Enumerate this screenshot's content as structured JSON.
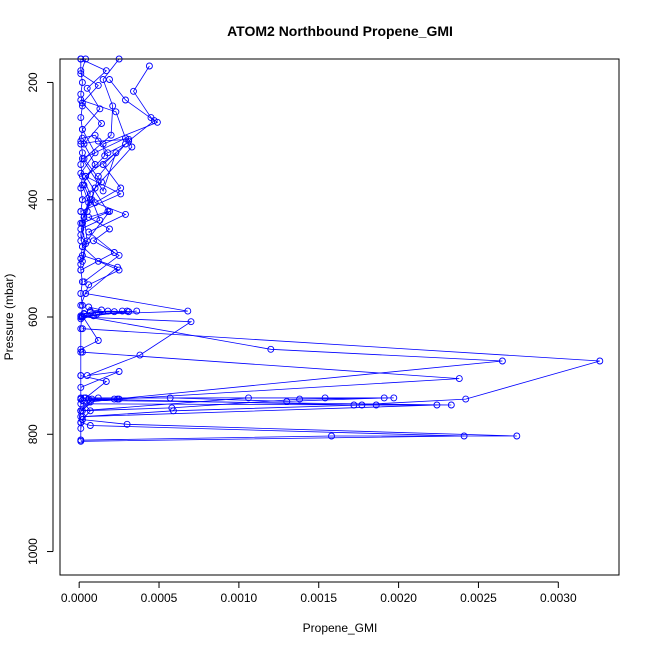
{
  "chart_data": {
    "type": "line",
    "title": "ATOM2 Northbound Propene_GMI",
    "xlabel": "Propene_GMI",
    "ylabel": "Pressure (mbar)",
    "xlim": [
      -0.00012,
      0.00338
    ],
    "ylim": [
      1040,
      160
    ],
    "y_reversed": true,
    "grid": false,
    "xticks": [
      "0.0000",
      "0.0005",
      "0.0010",
      "0.0015",
      "0.0020",
      "0.0025",
      "0.0030"
    ],
    "xtick_values": [
      0.0,
      0.0005,
      0.001,
      0.0015,
      0.002,
      0.0025,
      0.003
    ],
    "yticks": [
      "200",
      "400",
      "600",
      "800",
      "1000"
    ],
    "ytick_values": [
      200,
      400,
      600,
      800,
      1000
    ],
    "color": "#0000ff",
    "series": [
      {
        "x": [
          4e-05,
          1e-05,
          0.00012,
          2e-05,
          0.00014,
          3e-05,
          0.0001,
          2e-05,
          6e-05,
          1e-05,
          4e-05,
          1e-05
        ],
        "y": [
          160,
          185,
          205,
          235,
          270,
          305,
          340,
          375,
          405,
          440,
          475,
          510
        ]
      },
      {
        "x": [
          1e-05,
          0.00017,
          5e-05,
          0.00013,
          2e-05,
          0.0001,
          1e-05,
          7e-05,
          3e-05,
          5e-05,
          2e-05
        ],
        "y": [
          160,
          180,
          210,
          245,
          280,
          320,
          355,
          390,
          430,
          470,
          505
        ]
      },
      {
        "x": [
          0.00025,
          0.00015,
          0.00021,
          0.0002,
          3e-05,
          0.00014,
          2e-05
        ],
        "y": [
          160,
          195,
          240,
          290,
          330,
          370,
          400
        ]
      },
      {
        "x": [
          0.00044,
          0.00034,
          0.00045,
          0.00049,
          0.00015,
          0.00016,
          4e-05,
          0.00026,
          1e-05
        ],
        "y": [
          172,
          215,
          260,
          268,
          305,
          325,
          360,
          390,
          420
        ]
      },
      {
        "x": [
          0.00019,
          0.00029,
          0.00047,
          0.00031,
          0.00015,
          0.00026,
          0.0001,
          0.00029,
          6e-05,
          0.00022,
          1e-05
        ],
        "y": [
          195,
          230,
          265,
          300,
          340,
          380,
          405,
          425,
          455,
          490,
          520
        ]
      },
      {
        "x": [
          1e-05,
          0.00023,
          0.00029,
          2e-05,
          0.00015,
          0.00023,
          4e-05,
          0.00018,
          6e-05,
          0.00019,
          9e-05,
          0.00025,
          3e-05
        ],
        "y": [
          230,
          250,
          295,
          330,
          385,
          320,
          360,
          420,
          430,
          450,
          470,
          495,
          540
        ]
      },
      {
        "x": [
          2e-05,
          0.0001,
          0.00018,
          0.00029,
          0.00012,
          8e-05,
          0.00013,
          1e-05
        ],
        "y": [
          295,
          290,
          320,
          305,
          360,
          400,
          435,
          450
        ]
      },
      {
        "x": [
          1e-05,
          0.00012,
          0.00031,
          0.00033,
          0.0001,
          5e-05,
          1e-05
        ],
        "y": [
          305,
          300,
          297,
          310,
          380,
          420,
          470
        ]
      },
      {
        "x": [
          3e-05,
          7e-05,
          2e-05,
          0.00019,
          2e-05,
          0.00012,
          0.00025,
          6e-05,
          1e-05
        ],
        "y": [
          375,
          400,
          440,
          420,
          480,
          505,
          520,
          545,
          580
        ]
      },
      {
        "x": [
          2e-05,
          0.00024,
          4e-05,
          0.00068,
          0.00011,
          0.00036,
          2e-05,
          0.00012,
          1e-05
        ],
        "y": [
          495,
          515,
          560,
          590,
          595,
          590,
          598,
          640,
          655
        ]
      },
      {
        "x": [
          6e-05,
          0.00014,
          7e-05,
          0.00022,
          0.00027,
          3e-05,
          0.00018,
          0.00031,
          1e-05
        ],
        "y": [
          583,
          588,
          590,
          591,
          590,
          594,
          590,
          591,
          600
        ]
      },
      {
        "x": [
          3e-05,
          7e-05,
          1e-05,
          9e-05,
          0.0003,
          2e-05,
          0.0007,
          0.00038,
          5e-05,
          0.00025,
          1e-05
        ],
        "y": [
          595,
          592,
          603,
          598,
          590,
          600,
          608,
          665,
          700,
          693,
          720
        ]
      },
      {
        "x": [
          1e-05,
          0.0012,
          0.00265,
          0.00022,
          7e-05,
          2e-05
        ],
        "y": [
          598,
          655,
          675,
          740,
          745,
          760
        ]
      },
      {
        "x": [
          2e-05,
          0.00326,
          0.00242,
          0.00172,
          8e-05,
          1e-05
        ],
        "y": [
          620,
          675,
          740,
          750,
          740,
          760
        ]
      },
      {
        "x": [
          2e-05,
          0.00238,
          0.00025,
          6e-05,
          1e-05
        ],
        "y": [
          660,
          705,
          740,
          740,
          760
        ]
      },
      {
        "x": [
          1e-05,
          0.00017,
          4e-05,
          0.00012,
          1e-05
        ],
        "y": [
          700,
          710,
          738,
          738,
          760
        ]
      },
      {
        "x": [
          1e-05,
          0.00057,
          0.0013,
          0.00191,
          0.00154,
          0.00106,
          1e-05
        ],
        "y": [
          738,
          738,
          744,
          738,
          738,
          738,
          760
        ]
      },
      {
        "x": [
          4e-05,
          0.00197,
          0.00138,
          0.00058,
          1e-05
        ],
        "y": [
          738,
          738,
          740,
          755,
          760
        ]
      },
      {
        "x": [
          3e-05,
          0.00024,
          2e-05,
          0.00233,
          0.00177,
          0.00059,
          2e-05
        ],
        "y": [
          738,
          740,
          742,
          750,
          750,
          760,
          770
        ]
      },
      {
        "x": [
          1e-05,
          0.00186,
          0.00224,
          1e-05
        ],
        "y": [
          748,
          750,
          750,
          770
        ]
      },
      {
        "x": [
          1e-05,
          7e-05,
          2e-05,
          1e-05
        ],
        "y": [
          740,
          760,
          775,
          790
        ]
      },
      {
        "x": [
          2e-05,
          0.0003,
          0.00274,
          0.00158,
          1e-05
        ],
        "y": [
          775,
          783,
          803,
          803,
          810
        ]
      },
      {
        "x": [
          1e-05,
          7e-05,
          0.00241,
          1e-05
        ],
        "y": [
          780,
          785,
          803,
          812
        ]
      },
      {
        "x": [
          1e-05,
          1e-05,
          2e-05,
          1e-05,
          2e-05,
          1e-05,
          2e-05,
          1e-05,
          2e-05,
          1e-05,
          2e-05,
          1e-05,
          2e-05,
          1e-05,
          2e-05,
          1e-05,
          2e-05,
          1e-05,
          1e-05,
          2e-05,
          1e-05,
          2e-05,
          1e-05,
          1e-05,
          1e-05,
          1e-05,
          1e-05,
          1e-05
        ],
        "y": [
          160,
          180,
          200,
          220,
          240,
          260,
          280,
          300,
          320,
          340,
          360,
          380,
          400,
          420,
          440,
          460,
          480,
          500,
          520,
          540,
          560,
          580,
          620,
          660,
          700,
          740,
          780,
          810
        ]
      }
    ]
  }
}
